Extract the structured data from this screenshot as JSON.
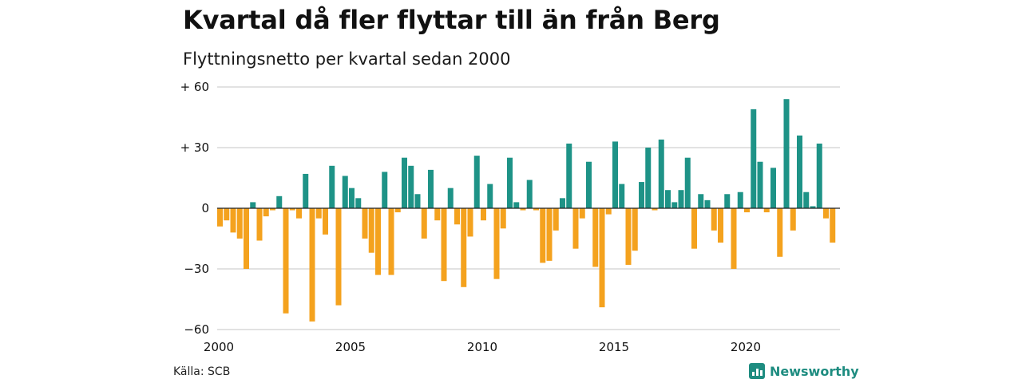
{
  "title": "Kvartal då fler flyttar till än från Berg",
  "subtitle": "Flyttningsnetto per kvartal sedan 2000",
  "source": "Källa: SCB",
  "brand": "Newsworthy",
  "colors": {
    "positive": "#1e9387",
    "negative": "#f4a21e",
    "grid": "#d8d8d8",
    "brand": "#1e8c80"
  },
  "chart_data": {
    "type": "bar",
    "x_start_year": 2000,
    "x_ticks": [
      2000,
      2005,
      2010,
      2015,
      2020
    ],
    "y_ticks": [
      {
        "value": 60,
        "label": "+ 60"
      },
      {
        "value": 30,
        "label": "+ 30"
      },
      {
        "value": 0,
        "label": "0"
      },
      {
        "value": -30,
        "label": "−30"
      },
      {
        "value": -60,
        "label": "−60"
      }
    ],
    "ylim": [
      -60,
      60
    ],
    "grid": true,
    "values": [
      -9,
      -6,
      -12,
      -15,
      -30,
      3,
      -16,
      -4,
      -1,
      6,
      -52,
      -1,
      -5,
      17,
      -56,
      -5,
      -13,
      21,
      -48,
      16,
      10,
      5,
      -15,
      -22,
      -33,
      18,
      -33,
      -2,
      25,
      21,
      7,
      -15,
      19,
      -6,
      -36,
      10,
      -8,
      -39,
      -14,
      26,
      -6,
      12,
      -35,
      -10,
      25,
      3,
      -1,
      14,
      -1,
      -27,
      -26,
      -11,
      5,
      32,
      -20,
      -5,
      23,
      -29,
      -49,
      -3,
      33,
      12,
      -28,
      -21,
      13,
      30,
      -1,
      34,
      9,
      3,
      9,
      25,
      -20,
      7,
      4,
      -11,
      -17,
      7,
      -30,
      8,
      -2,
      49,
      23,
      -2,
      20,
      -24,
      54,
      -11,
      36,
      8,
      1,
      32,
      -5,
      -17
    ]
  }
}
